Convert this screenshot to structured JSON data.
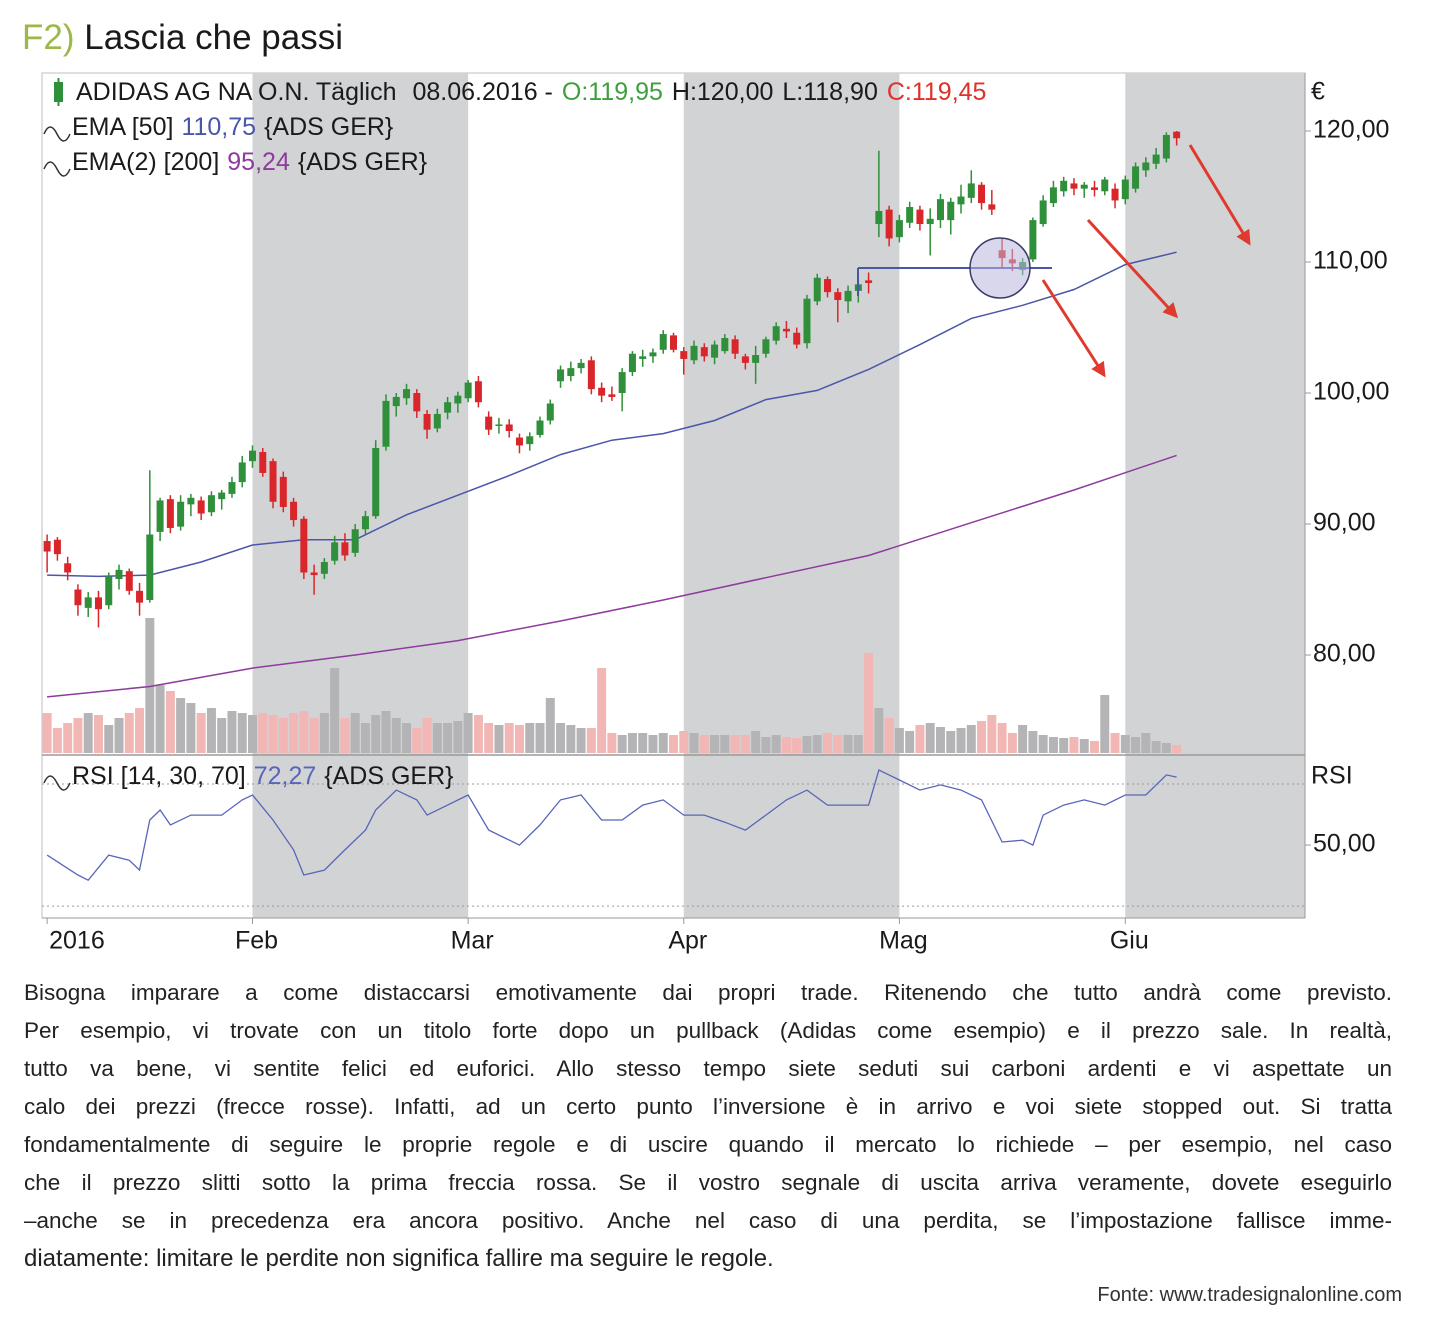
{
  "header": {
    "label": "F2)",
    "title": "Lascia che passi",
    "label_color": "#9db84a"
  },
  "chart_data": {
    "type": "candlestick",
    "name": "ADIDAS AG NA O.N. Täglich",
    "date": "08.06.2016 -",
    "quote": [
      {
        "key": "O:",
        "label": "119,95",
        "color": "#3f9f3f"
      },
      {
        "key": "H:",
        "label": "120,00",
        "color": "#1a1a1a"
      },
      {
        "key": "L:",
        "label": "118,90",
        "color": "#1a1a1a"
      },
      {
        "key": "C:",
        "label": "119,45",
        "color": "#e0302a"
      }
    ],
    "currency": "€",
    "xlim": [
      -0.5,
      122.5
    ],
    "xticks": [
      {
        "value": 0,
        "label": "2016"
      },
      {
        "value": 20,
        "label": "Feb"
      },
      {
        "value": 41,
        "label": "Mar"
      },
      {
        "value": 62,
        "label": "Apr"
      },
      {
        "value": 83,
        "label": "Mag"
      },
      {
        "value": 105,
        "label": "Giu"
      }
    ],
    "ylim": [
      72.52,
      124.43
    ],
    "yticks": [
      {
        "value": 80,
        "label": "80,00"
      },
      {
        "value": 90,
        "label": "90,00"
      },
      {
        "value": 100,
        "label": "100,00"
      },
      {
        "value": 110,
        "label": "110,00"
      },
      {
        "value": 120,
        "label": "120,00"
      }
    ],
    "up_color": "#2f8f3a",
    "down_color": "#d9262b",
    "volume_up_color": "#b4b4b6",
    "volume_down_color": "#f2b6b4",
    "shading_color": "#d2d3d5",
    "open": [
      88.7,
      88.8,
      87.0,
      85.0,
      83.6,
      84.4,
      83.8,
      85.8,
      86.4,
      84.9,
      84.2,
      89.4,
      91.9,
      89.8,
      91.5,
      91.8,
      90.9,
      91.9,
      92.3,
      93.2,
      94.8,
      95.5,
      94.8,
      93.6,
      91.7,
      90.4,
      86.3,
      86.2,
      87.2,
      88.6,
      87.8,
      89.6,
      90.6,
      95.9,
      99.0,
      99.6,
      100.0,
      98.4,
      97.3,
      98.5,
      99.2,
      99.6,
      100.9,
      98.2,
      97.6,
      97.6,
      96.6,
      96.1,
      96.8,
      97.9,
      100.9,
      101.3,
      101.9,
      102.5,
      100.4,
      99.9,
      100.0,
      101.6,
      102.6,
      102.8,
      103.3,
      104.4,
      103.2,
      102.5,
      103.5,
      102.7,
      103.2,
      104.1,
      102.8,
      102.3,
      103.0,
      104.0,
      104.9,
      104.6,
      103.8,
      107.0,
      108.7,
      107.7,
      107.0,
      107.8,
      108.6,
      112.9,
      114.0,
      111.9,
      113.0,
      114.0,
      112.9,
      113.2,
      113.2,
      114.4,
      114.9,
      115.9,
      114.4,
      110.9,
      110.2,
      109.4,
      110.2,
      112.9,
      114.5,
      115.4,
      116.0,
      115.6,
      115.7,
      115.4,
      115.6,
      114.8,
      115.6,
      117.0,
      117.5,
      117.9,
      119.95
    ],
    "high": [
      89.2,
      89.0,
      87.5,
      85.4,
      84.8,
      84.9,
      86.3,
      86.9,
      86.6,
      85.5,
      94.1,
      92.0,
      92.2,
      92.2,
      92.3,
      92.1,
      92.5,
      92.6,
      93.6,
      95.2,
      96.0,
      95.8,
      95.0,
      94.0,
      92.0,
      90.6,
      86.9,
      87.4,
      89.1,
      89.3,
      90.0,
      91.0,
      96.4,
      99.9,
      100.0,
      100.7,
      100.3,
      98.7,
      98.8,
      99.7,
      100.1,
      101.0,
      101.3,
      98.6,
      98.1,
      98.0,
      96.9,
      97.0,
      98.2,
      99.5,
      102.1,
      102.4,
      102.6,
      102.8,
      100.8,
      100.5,
      101.9,
      103.2,
      103.3,
      103.4,
      104.8,
      104.6,
      103.5,
      104.0,
      103.8,
      104.0,
      104.5,
      104.4,
      103.0,
      103.6,
      104.3,
      105.4,
      105.5,
      105.0,
      107.5,
      109.1,
      108.9,
      108.0,
      108.2,
      108.7,
      109.2,
      118.5,
      114.3,
      113.6,
      114.6,
      114.3,
      114.1,
      115.2,
      114.9,
      115.9,
      117.0,
      116.1,
      115.5,
      111.8,
      111.0,
      110.3,
      113.4,
      115.1,
      116.2,
      116.5,
      116.4,
      116.1,
      116.2,
      116.5,
      116.0,
      116.6,
      117.6,
      118.0,
      118.7,
      119.9,
      120.0
    ],
    "low": [
      86.3,
      87.2,
      85.7,
      83.0,
      82.9,
      82.1,
      83.5,
      85.0,
      84.6,
      83.0,
      84.0,
      88.7,
      89.3,
      89.5,
      90.6,
      90.3,
      90.6,
      91.1,
      92.0,
      92.8,
      94.3,
      93.6,
      91.2,
      90.9,
      89.8,
      85.8,
      84.6,
      85.8,
      86.9,
      87.2,
      87.5,
      89.2,
      90.4,
      95.6,
      98.2,
      99.1,
      98.1,
      96.5,
      97.0,
      98.0,
      98.5,
      99.3,
      98.9,
      96.8,
      96.9,
      96.6,
      95.4,
      95.6,
      96.6,
      97.6,
      100.4,
      100.9,
      101.5,
      99.9,
      99.3,
      99.4,
      98.6,
      101.3,
      102.0,
      102.3,
      103.0,
      103.1,
      101.4,
      102.2,
      102.4,
      102.2,
      103.0,
      102.6,
      101.8,
      100.7,
      102.7,
      103.7,
      104.2,
      103.4,
      103.4,
      106.7,
      107.3,
      105.4,
      106.1,
      106.9,
      107.6,
      111.9,
      111.2,
      111.5,
      112.6,
      112.4,
      110.5,
      112.6,
      112.1,
      113.7,
      114.5,
      114.0,
      113.6,
      109.6,
      109.3,
      109.0,
      110.0,
      112.7,
      114.2,
      115.0,
      115.1,
      114.9,
      115.0,
      115.1,
      114.1,
      114.4,
      115.3,
      116.5,
      117.1,
      117.6,
      118.9
    ],
    "close": [
      87.9,
      87.7,
      86.3,
      83.8,
      84.4,
      83.5,
      86.0,
      86.5,
      84.9,
      84.0,
      89.2,
      91.8,
      89.7,
      91.7,
      92.0,
      90.8,
      92.2,
      92.4,
      93.2,
      94.7,
      95.6,
      93.9,
      91.7,
      91.3,
      90.3,
      86.3,
      86.1,
      87.1,
      88.6,
      87.6,
      89.6,
      90.6,
      95.8,
      99.4,
      99.7,
      100.3,
      98.6,
      97.2,
      98.4,
      99.3,
      99.8,
      100.8,
      99.3,
      97.2,
      97.6,
      97.1,
      96.0,
      96.7,
      97.9,
      99.2,
      101.8,
      101.9,
      102.3,
      100.3,
      99.8,
      99.7,
      101.6,
      103.0,
      102.8,
      103.1,
      104.5,
      103.3,
      102.6,
      103.6,
      102.8,
      103.7,
      104.2,
      103.0,
      102.3,
      102.9,
      104.1,
      105.1,
      104.7,
      103.7,
      107.2,
      108.8,
      107.7,
      107.1,
      107.8,
      108.3,
      108.4,
      113.9,
      111.8,
      113.2,
      114.2,
      112.9,
      113.3,
      114.8,
      114.6,
      115.0,
      116.0,
      114.5,
      114.0,
      110.3,
      109.9,
      110.0,
      113.2,
      114.7,
      115.7,
      116.2,
      115.6,
      115.9,
      115.5,
      116.3,
      114.7,
      116.3,
      117.3,
      117.6,
      118.2,
      119.7,
      119.45
    ],
    "volume": [
      40,
      25,
      30,
      35,
      40,
      38,
      28,
      35,
      40,
      45,
      135,
      68,
      62,
      55,
      50,
      40,
      45,
      35,
      42,
      40,
      38,
      40,
      38,
      35,
      40,
      42,
      35,
      40,
      85,
      35,
      40,
      30,
      38,
      42,
      35,
      30,
      25,
      35,
      30,
      30,
      32,
      40,
      38,
      30,
      28,
      30,
      28,
      30,
      30,
      55,
      30,
      28,
      25,
      25,
      85,
      20,
      18,
      20,
      20,
      18,
      20,
      18,
      22,
      20,
      18,
      18,
      18,
      18,
      18,
      22,
      16,
      18,
      16,
      15,
      17,
      18,
      20,
      18,
      18,
      18,
      100,
      45,
      35,
      25,
      22,
      28,
      30,
      26,
      22,
      25,
      28,
      32,
      38,
      30,
      20,
      28,
      22,
      18,
      16,
      15,
      16,
      14,
      12,
      58,
      20,
      18,
      16,
      20,
      12,
      10,
      8
    ],
    "series": [
      {
        "name": "EMA [50]",
        "label": "110,75",
        "source": "{ADS GER}",
        "color": "#4a56a8",
        "x": [
          0,
          5,
          10,
          15,
          20,
          25,
          30,
          35,
          40,
          45,
          50,
          55,
          60,
          65,
          70,
          75,
          80,
          85,
          90,
          95,
          100,
          105,
          110
        ],
        "values": [
          86.1,
          86.0,
          86.1,
          87.1,
          88.4,
          88.8,
          88.8,
          90.7,
          92.2,
          93.7,
          95.3,
          96.4,
          96.9,
          97.9,
          99.5,
          100.2,
          101.8,
          103.7,
          105.7,
          106.7,
          107.9,
          109.8,
          110.75
        ]
      },
      {
        "name": "EMA(2) [200]",
        "label": "95,24",
        "source": "{ADS GER}",
        "color": "#8d3b9c",
        "x": [
          0,
          10,
          20,
          30,
          40,
          50,
          60,
          70,
          80,
          90,
          100,
          110
        ],
        "values": [
          76.8,
          77.6,
          79.0,
          80.0,
          81.1,
          82.6,
          84.2,
          85.9,
          87.6,
          90.1,
          92.6,
          95.24
        ]
      }
    ],
    "rsi": {
      "name": "RSI [14, 30, 70]",
      "label": "72,27",
      "source": "{ADS GER}",
      "axis_label": "RSI",
      "color": "#5866b8",
      "ylim": [
        26.1,
        78.85
      ],
      "yticks": [
        {
          "value": 50,
          "label": "50,00"
        }
      ],
      "levels": [
        30,
        70
      ],
      "x": [
        0,
        3,
        4,
        6,
        8,
        9,
        10,
        11,
        12,
        14,
        17,
        19,
        20,
        22,
        24,
        25,
        27,
        29,
        31,
        32,
        34,
        36,
        37,
        39,
        41,
        43,
        46,
        48,
        50,
        52,
        54,
        56,
        58,
        60,
        62,
        64,
        66,
        68,
        70,
        72,
        74,
        76,
        78,
        80,
        81,
        83,
        85,
        87,
        89,
        91,
        93,
        95,
        96,
        97,
        99,
        101,
        103,
        105,
        107,
        109,
        110
      ],
      "values": [
        46.7,
        40.2,
        38.5,
        46.7,
        45,
        41.8,
        58.2,
        61.5,
        56.6,
        59.8,
        59.8,
        64.8,
        66.4,
        58.2,
        48.4,
        40.2,
        41.8,
        48.4,
        54.9,
        61.5,
        68,
        64.8,
        59.8,
        63.1,
        66.4,
        54.9,
        50,
        56.6,
        64.8,
        66.4,
        58.2,
        58.2,
        63.1,
        64.8,
        59.8,
        59.8,
        57.5,
        54.9,
        59.8,
        64.8,
        68,
        63.1,
        63.1,
        63.1,
        74.6,
        71.3,
        68,
        69.7,
        68,
        64.8,
        51,
        51.6,
        50,
        59.8,
        63.1,
        64.8,
        63.1,
        66.4,
        66.4,
        73,
        72.27
      ]
    }
  },
  "body": {
    "lines": [
      "Bisogna imparare a come distaccarsi emotivamente dai propri trade. Ritenendo che tutto andrà come previsto.",
      "Per esempio, vi trovate con un titolo forte dopo un pullback (Adidas come esempio) e il prezzo sale. In realtà,",
      "tutto va bene, vi sentite felici ed euforici. Allo stesso tempo siete seduti sui carboni ardenti e vi aspettate un",
      "calo dei prezzi (frecce rosse). Infatti, ad un certo punto l’inversione è in arrivo e voi siete stopped out. Si tratta",
      "fondamentalmente di seguire le proprie regole e di uscire quando il mercato lo richiede – per esempio, nel caso",
      "che il prezzo slitti sotto la prima freccia rossa. Se il vostro segnale di uscita arriva veramente, dovete eseguirlo",
      "–anche se in precedenza era ancora positivo. Anche nel caso di una perdita, se l’impostazione fallisce imme-",
      "diatamente: limitare le perdite non significa fallire ma seguire le regole."
    ]
  },
  "source": "Fonte:  www.tradesignalonline.com"
}
